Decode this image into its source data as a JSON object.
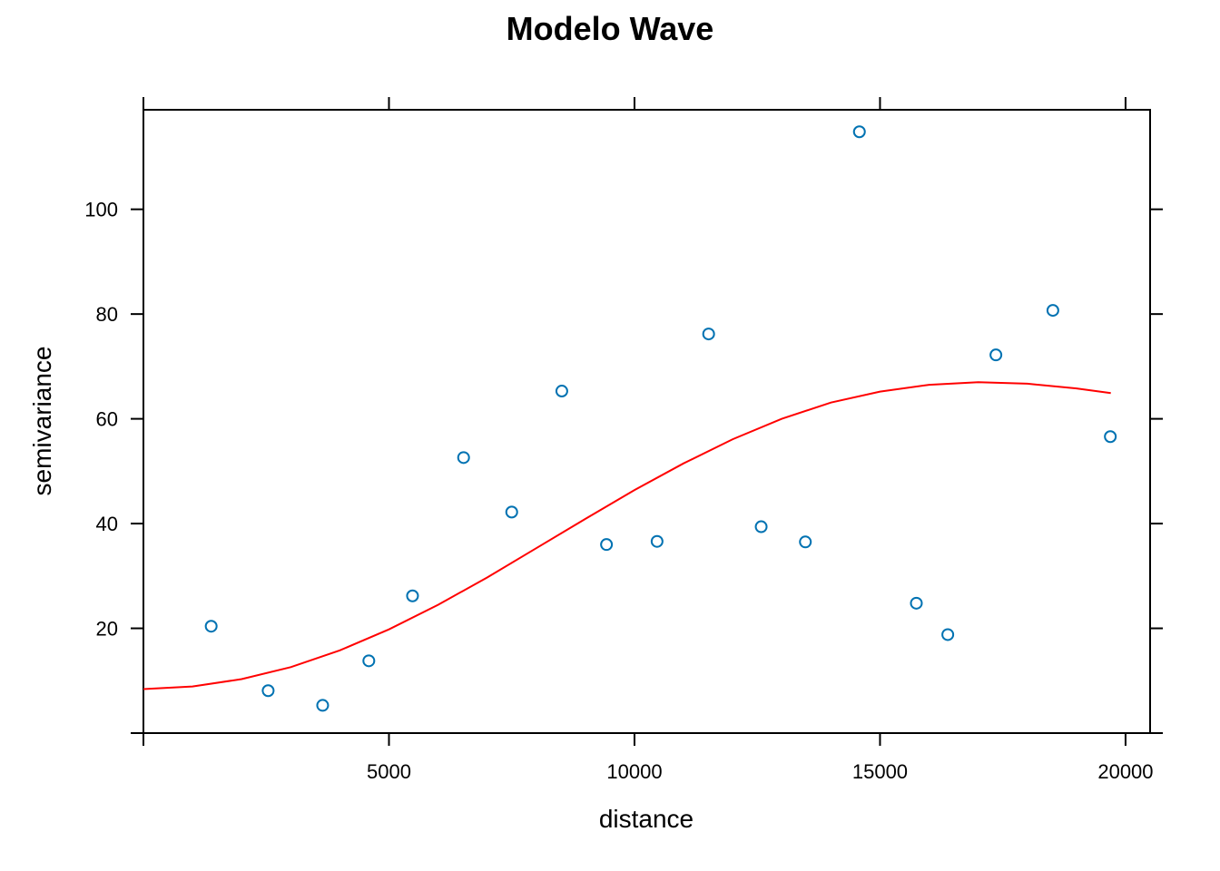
{
  "chart_data": {
    "type": "scatter",
    "title": "Modelo Wave",
    "xlabel": "distance",
    "ylabel": "semivariance",
    "xlim": [
      0,
      20500
    ],
    "ylim": [
      0,
      119
    ],
    "x_ticks": [
      5000,
      10000,
      15000,
      20000
    ],
    "y_ticks": [
      20,
      40,
      60,
      80,
      100
    ],
    "grid": false,
    "legend": "none",
    "colors": {
      "points": "#0072B2",
      "model": "#ff0000",
      "axes": "#000000"
    },
    "points": [
      {
        "x": 1380,
        "y": 20.4
      },
      {
        "x": 2540,
        "y": 8.1
      },
      {
        "x": 3650,
        "y": 5.3
      },
      {
        "x": 4590,
        "y": 13.8
      },
      {
        "x": 5480,
        "y": 26.2
      },
      {
        "x": 6520,
        "y": 52.6
      },
      {
        "x": 7500,
        "y": 42.2
      },
      {
        "x": 8520,
        "y": 65.3
      },
      {
        "x": 9430,
        "y": 36.0
      },
      {
        "x": 10460,
        "y": 36.6
      },
      {
        "x": 11510,
        "y": 76.2
      },
      {
        "x": 12580,
        "y": 39.4
      },
      {
        "x": 13480,
        "y": 36.5
      },
      {
        "x": 14580,
        "y": 114.8
      },
      {
        "x": 15740,
        "y": 24.8
      },
      {
        "x": 16380,
        "y": 18.8
      },
      {
        "x": 17360,
        "y": 72.2
      },
      {
        "x": 18520,
        "y": 80.7
      },
      {
        "x": 19690,
        "y": 56.6
      }
    ],
    "model_curve": [
      {
        "x": 0,
        "y": 8.4
      },
      {
        "x": 1000,
        "y": 8.9
      },
      {
        "x": 2000,
        "y": 10.3
      },
      {
        "x": 3000,
        "y": 12.6
      },
      {
        "x": 4000,
        "y": 15.8
      },
      {
        "x": 5000,
        "y": 19.8
      },
      {
        "x": 6000,
        "y": 24.5
      },
      {
        "x": 7000,
        "y": 29.7
      },
      {
        "x": 8000,
        "y": 35.3
      },
      {
        "x": 9000,
        "y": 40.9
      },
      {
        "x": 10000,
        "y": 46.4
      },
      {
        "x": 11000,
        "y": 51.5
      },
      {
        "x": 12000,
        "y": 56.1
      },
      {
        "x": 13000,
        "y": 60.0
      },
      {
        "x": 14000,
        "y": 63.1
      },
      {
        "x": 15000,
        "y": 65.2
      },
      {
        "x": 16000,
        "y": 66.5
      },
      {
        "x": 17000,
        "y": 67.0
      },
      {
        "x": 18000,
        "y": 66.7
      },
      {
        "x": 19000,
        "y": 65.8
      },
      {
        "x": 19700,
        "y": 64.9
      }
    ]
  }
}
